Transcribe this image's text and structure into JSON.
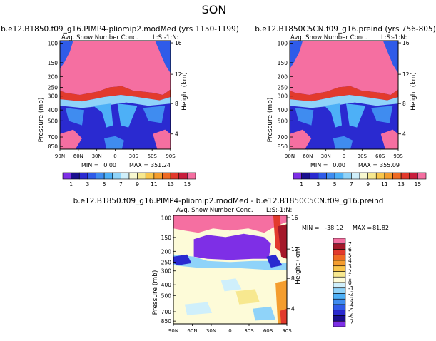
{
  "page": {
    "title": "SON"
  },
  "colors": {
    "palette_levels": [
      "#7e2fe6",
      "#1a0f8f",
      "#2a2ad0",
      "#2f5be8",
      "#3f8cf0",
      "#4db0f7",
      "#8fd3f9",
      "#cfeffb",
      "#f7f7d0",
      "#f7e88f",
      "#f9c64c",
      "#f49d2e",
      "#ef6a23",
      "#e23a2d",
      "#c81e3c",
      "#f56fa1"
    ],
    "diff_levels": [
      "#7e2fe6",
      "#1a0f8f",
      "#2a2ad0",
      "#2f5be8",
      "#3f8cf0",
      "#4db0f7",
      "#8fd3f9",
      "#cfeffb",
      "#fdfbd8",
      "#f7e88f",
      "#f9c64c",
      "#f49d2e",
      "#ef6a23",
      "#e23a2d",
      "#a4182a",
      "#f56fa1"
    ]
  },
  "chart_data": [
    {
      "type": "heatmap",
      "title": "b.e12.B1850.f09_g16.PIMP4-pliomip2.modMed (yrs 1150-1199)",
      "subtitle": "Avg. Snow Number Conc.",
      "units_label": "L:S:-1:N:",
      "ylabel": "Pressure (mb)",
      "y2label": "Height (km)",
      "x_ticks": [
        "90N",
        "60N",
        "30N",
        "0",
        "30S",
        "60S",
        "90S"
      ],
      "y_ticks": [
        "100",
        "150",
        "200",
        "250",
        "300",
        "400",
        "500",
        "700",
        "850"
      ],
      "y2_ticks": [
        "16",
        "12",
        "8",
        "4"
      ],
      "stats": {
        "min_label": "MIN =",
        "min": "0.00",
        "max_label": "MAX =",
        "max": "351.24"
      },
      "colorbar": {
        "orientation": "horizontal",
        "tick_labels": [
          "1",
          "3",
          "5",
          "7",
          "9",
          "11",
          "13",
          "15"
        ],
        "levels": 16
      }
    },
    {
      "type": "heatmap",
      "title": "b.e12.B1850C5CN.f09_g16.preind (yrs 756-805)",
      "subtitle": "Avg. Snow Number Conc.",
      "units_label": "L:S:-1:N:",
      "ylabel": "Pressure (mb)",
      "y2label": "Height (km)",
      "x_ticks": [
        "90N",
        "60N",
        "30N",
        "0",
        "30S",
        "60S",
        "90S"
      ],
      "y_ticks": [
        "100",
        "150",
        "200",
        "250",
        "300",
        "400",
        "500",
        "700",
        "850"
      ],
      "y2_ticks": [
        "16",
        "12",
        "8",
        "4"
      ],
      "stats": {
        "min_label": "MIN =",
        "min": "0.00",
        "max_label": "MAX =",
        "max": "355.09"
      },
      "colorbar": {
        "orientation": "horizontal",
        "tick_labels": [
          "1",
          "3",
          "5",
          "7",
          "9",
          "11",
          "13",
          "15"
        ],
        "levels": 16
      }
    },
    {
      "type": "heatmap",
      "title": "b.e12.B1850.f09_g16.PIMP4-pliomip2.modMed - b.e12.B1850C5CN.f09_g16.preind",
      "subtitle": "Avg. Snow Number Conc.",
      "units_label": "L:S:-1:N:",
      "ylabel": "Pressure (mb)",
      "y2label": "Height (km)",
      "x_ticks": [
        "90N",
        "60N",
        "30N",
        "0",
        "30S",
        "60S",
        "90S"
      ],
      "y_ticks": [
        "100",
        "150",
        "200",
        "250",
        "300",
        "400",
        "500",
        "700",
        "850"
      ],
      "y2_ticks": [
        "16",
        "12",
        "8",
        "4"
      ],
      "stats": {
        "min_label": "MIN =",
        "min": "-38.12",
        "max_label": "MAX =",
        "max": "81.82"
      },
      "colorbar": {
        "orientation": "vertical",
        "tick_labels": [
          "7",
          "6",
          "5",
          "4",
          "3",
          "2",
          "1",
          "0",
          "-1",
          "-2",
          "-3",
          "-4",
          "-5",
          "-6",
          "-7"
        ],
        "levels": 16
      }
    }
  ]
}
